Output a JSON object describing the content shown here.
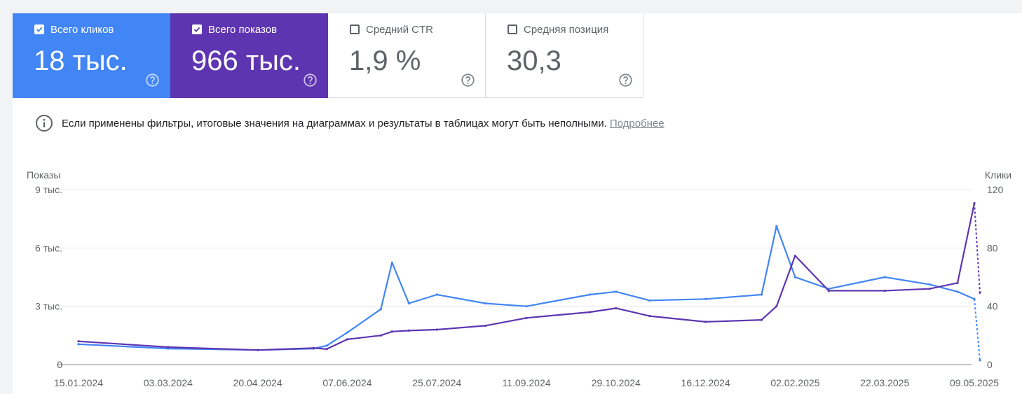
{
  "cards": [
    {
      "label": "Всего кликов",
      "value": "18 тыс.",
      "checked": true,
      "color": "#4285f4"
    },
    {
      "label": "Всего показов",
      "value": "966 тыс.",
      "checked": true,
      "color": "#5e35b1"
    },
    {
      "label": "Средний CTR",
      "value": "1,9 %",
      "checked": false
    },
    {
      "label": "Средняя позиция",
      "value": "30,3",
      "checked": false
    }
  ],
  "help_icon": "help-circle-icon",
  "notice": {
    "icon": "info-icon",
    "text": "Если применены фильтры, итоговые значения на диаграммах и результаты в таблицах могут быть неполными.",
    "link": "Подробнее"
  },
  "chart_data": {
    "type": "line",
    "left_axis": {
      "title": "Показы",
      "ticks": [
        "9 тыс.",
        "6 тыс.",
        "3 тыс.",
        "0"
      ],
      "range": [
        0,
        9000
      ]
    },
    "right_axis": {
      "title": "Клики",
      "ticks": [
        "120",
        "80",
        "40",
        "0"
      ],
      "range": [
        0,
        120
      ]
    },
    "x_labels": [
      "15.01.2024",
      "03.03.2024",
      "20.04.2024",
      "07.06.2024",
      "25.07.2024",
      "11.09.2024",
      "29.10.2024",
      "16.12.2024",
      "02.02.2025",
      "22.03.2025",
      "09.05.2025"
    ],
    "grid": true,
    "series": [
      {
        "name": "Клики",
        "axis": "right",
        "color": "#4285f4",
        "x": [
          "15.01.2024",
          "03.03.2024",
          "20.04.2024",
          "20.05.2024",
          "27.05.2024",
          "07.06.2024",
          "25.06.2024",
          "01.07.2024",
          "10.07.2024",
          "25.07.2024",
          "20.08.2024",
          "11.09.2024",
          "15.10.2024",
          "29.10.2024",
          "16.11.2024",
          "16.12.2024",
          "15.01.2025",
          "23.01.2025",
          "02.02.2025",
          "20.02.2025",
          "22.03.2025",
          "15.04.2025",
          "30.04.2025",
          "09.05.2025",
          "12.05.2025"
        ],
        "values": [
          14,
          11,
          10,
          11,
          13,
          22,
          38,
          70,
          42,
          48,
          42,
          40,
          48,
          50,
          44,
          45,
          48,
          95,
          60,
          52,
          60,
          55,
          50,
          45,
          3
        ]
      },
      {
        "name": "Показы",
        "axis": "left",
        "color": "#5e35b1",
        "x": [
          "15.01.2024",
          "03.03.2024",
          "20.04.2024",
          "20.05.2024",
          "27.05.2024",
          "07.06.2024",
          "25.06.2024",
          "01.07.2024",
          "10.07.2024",
          "25.07.2024",
          "20.08.2024",
          "11.09.2024",
          "15.10.2024",
          "29.10.2024",
          "16.11.2024",
          "16.12.2024",
          "15.01.2025",
          "23.01.2025",
          "02.02.2025",
          "20.02.2025",
          "22.03.2025",
          "15.04.2025",
          "30.04.2025",
          "09.05.2025",
          "12.05.2025"
        ],
        "values": [
          1200,
          900,
          750,
          850,
          800,
          1300,
          1500,
          1700,
          1750,
          1800,
          2000,
          2400,
          2700,
          2900,
          2500,
          2200,
          2300,
          3000,
          5600,
          3800,
          3800,
          3900,
          4200,
          8300,
          3700
        ]
      }
    ]
  }
}
